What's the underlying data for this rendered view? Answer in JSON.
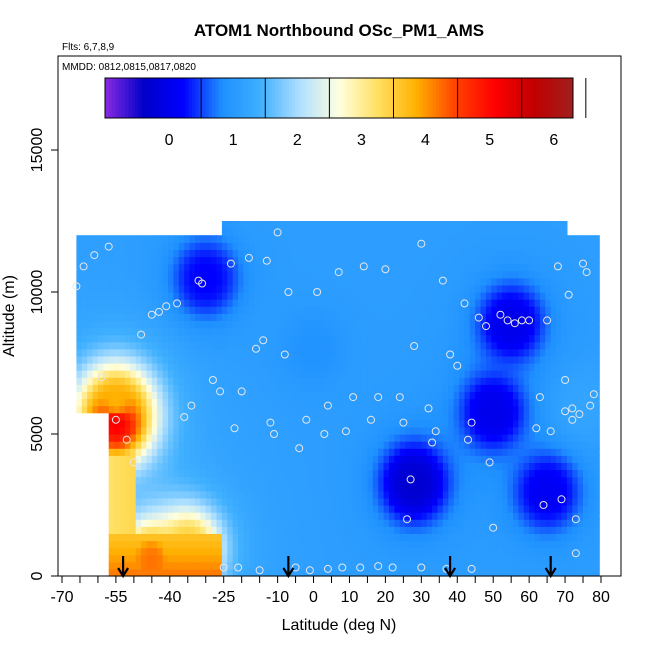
{
  "chart_data": {
    "type": "heatmap",
    "title": "ATOM1 Northbound OSc_PM1_AMS",
    "flights_label": "Flts: 6,7,8,9",
    "dates_label": "MMDD: 0812,0815,0817,0820",
    "xlabel": "Latitude (deg N)",
    "ylabel": "Altitude (m)",
    "xlim": [
      -70,
      82
    ],
    "ylim": [
      0,
      17500
    ],
    "x_ticks": [
      -70,
      -55,
      -40,
      -25,
      -10,
      0,
      10,
      20,
      30,
      40,
      50,
      60,
      70,
      80
    ],
    "y_ticks": [
      0,
      5000,
      10000,
      15000
    ],
    "colorbar": {
      "range": [
        -1,
        6.3
      ],
      "ticks": [
        0,
        1,
        2,
        3,
        4,
        5,
        6
      ],
      "colors": [
        "#8a2be2",
        "#0000c8",
        "#0000ff",
        "#1e90ff",
        "#40b0ff",
        "#b0e0ff",
        "#ffffe0",
        "#ffe060",
        "#ffb000",
        "#ff4000",
        "#ff0000",
        "#c00000",
        "#a02020"
      ]
    },
    "field_samples": [
      {
        "lat": -55,
        "alt": 5500,
        "value": 5.2
      },
      {
        "lat": -55,
        "alt": 6000,
        "value": 3.8
      },
      {
        "lat": -45,
        "alt": 500,
        "value": 4.2
      },
      {
        "lat": -35,
        "alt": 1000,
        "value": 3.5
      },
      {
        "lat": -30,
        "alt": 10500,
        "value": 0.2
      },
      {
        "lat": 0,
        "alt": 8000,
        "value": 0.9
      },
      {
        "lat": 28,
        "alt": 3300,
        "value": -0.3
      },
      {
        "lat": 50,
        "alt": 5800,
        "value": 0.0
      },
      {
        "lat": 55,
        "alt": 8900,
        "value": 0.0
      },
      {
        "lat": 65,
        "alt": 3000,
        "value": 0.1
      },
      {
        "lat": 75,
        "alt": 6000,
        "value": 1.2
      }
    ],
    "sample_points": [
      {
        "lat": -66,
        "alt": 10200
      },
      {
        "lat": -64,
        "alt": 10900
      },
      {
        "lat": -61,
        "alt": 11300
      },
      {
        "lat": -57,
        "alt": 11600
      },
      {
        "lat": -59,
        "alt": 7000
      },
      {
        "lat": -55,
        "alt": 5500
      },
      {
        "lat": -52,
        "alt": 4800
      },
      {
        "lat": -50,
        "alt": 4000
      },
      {
        "lat": -48,
        "alt": 8500
      },
      {
        "lat": -45,
        "alt": 9200
      },
      {
        "lat": -43,
        "alt": 9300
      },
      {
        "lat": -41,
        "alt": 9500
      },
      {
        "lat": -38,
        "alt": 9600
      },
      {
        "lat": -36,
        "alt": 5600
      },
      {
        "lat": -34,
        "alt": 6000
      },
      {
        "lat": -32,
        "alt": 10400
      },
      {
        "lat": -31,
        "alt": 10300
      },
      {
        "lat": -28,
        "alt": 6900
      },
      {
        "lat": -26,
        "alt": 6500
      },
      {
        "lat": -25,
        "alt": 300
      },
      {
        "lat": -23,
        "alt": 11000
      },
      {
        "lat": -22,
        "alt": 5200
      },
      {
        "lat": -20,
        "alt": 6500
      },
      {
        "lat": -18,
        "alt": 11200
      },
      {
        "lat": -16,
        "alt": 8000
      },
      {
        "lat": -14,
        "alt": 8300
      },
      {
        "lat": -13,
        "alt": 11100
      },
      {
        "lat": -12,
        "alt": 5400
      },
      {
        "lat": -11,
        "alt": 5000
      },
      {
        "lat": -10,
        "alt": 12100
      },
      {
        "lat": -8,
        "alt": 7800
      },
      {
        "lat": -7,
        "alt": 10000
      },
      {
        "lat": -4,
        "alt": 4500
      },
      {
        "lat": -2,
        "alt": 5500
      },
      {
        "lat": 1,
        "alt": 10000
      },
      {
        "lat": 3,
        "alt": 5000
      },
      {
        "lat": 4,
        "alt": 6000
      },
      {
        "lat": 7,
        "alt": 10700
      },
      {
        "lat": 9,
        "alt": 5100
      },
      {
        "lat": 11,
        "alt": 6300
      },
      {
        "lat": 14,
        "alt": 10900
      },
      {
        "lat": 16,
        "alt": 5500
      },
      {
        "lat": 18,
        "alt": 6300
      },
      {
        "lat": 20,
        "alt": 10800
      },
      {
        "lat": 24,
        "alt": 6300
      },
      {
        "lat": 25,
        "alt": 5400
      },
      {
        "lat": 26,
        "alt": 2000
      },
      {
        "lat": 27,
        "alt": 3400
      },
      {
        "lat": 28,
        "alt": 8100
      },
      {
        "lat": 30,
        "alt": 11700
      },
      {
        "lat": 32,
        "alt": 5900
      },
      {
        "lat": 33,
        "alt": 4700
      },
      {
        "lat": 34,
        "alt": 5100
      },
      {
        "lat": 36,
        "alt": 10400
      },
      {
        "lat": 38,
        "alt": 7800
      },
      {
        "lat": 40,
        "alt": 7400
      },
      {
        "lat": 42,
        "alt": 9600
      },
      {
        "lat": 43,
        "alt": 4800
      },
      {
        "lat": 44,
        "alt": 5400
      },
      {
        "lat": 46,
        "alt": 9100
      },
      {
        "lat": 48,
        "alt": 8800
      },
      {
        "lat": 49,
        "alt": 4000
      },
      {
        "lat": 50,
        "alt": 1700
      },
      {
        "lat": 52,
        "alt": 9200
      },
      {
        "lat": 54,
        "alt": 9000
      },
      {
        "lat": 56,
        "alt": 8900
      },
      {
        "lat": 58,
        "alt": 9000
      },
      {
        "lat": 60,
        "alt": 9000
      },
      {
        "lat": 62,
        "alt": 5200
      },
      {
        "lat": 63,
        "alt": 6300
      },
      {
        "lat": 64,
        "alt": 2500
      },
      {
        "lat": 65,
        "alt": 9000
      },
      {
        "lat": 66,
        "alt": 5100
      },
      {
        "lat": 68,
        "alt": 10900
      },
      {
        "lat": 69,
        "alt": 2700
      },
      {
        "lat": 70,
        "alt": 6900
      },
      {
        "lat": 70,
        "alt": 5800
      },
      {
        "lat": 71,
        "alt": 9900
      },
      {
        "lat": 72,
        "alt": 5500
      },
      {
        "lat": 72,
        "alt": 5900
      },
      {
        "lat": 73,
        "alt": 2000
      },
      {
        "lat": 74,
        "alt": 5700
      },
      {
        "lat": 75,
        "alt": 11000
      },
      {
        "lat": 76,
        "alt": 10700
      },
      {
        "lat": 77,
        "alt": 6000
      },
      {
        "lat": 78,
        "alt": 6400
      },
      {
        "lat": 73,
        "alt": 800
      },
      {
        "lat": -5,
        "alt": 300
      },
      {
        "lat": -1,
        "alt": 200
      },
      {
        "lat": 4,
        "alt": 250
      },
      {
        "lat": 8,
        "alt": 300
      },
      {
        "lat": 13,
        "alt": 300
      },
      {
        "lat": 18,
        "alt": 350
      },
      {
        "lat": 22,
        "alt": 300
      },
      {
        "lat": 30,
        "alt": 300
      },
      {
        "lat": 37,
        "alt": 250
      },
      {
        "lat": 44,
        "alt": 250
      },
      {
        "lat": -15,
        "alt": 200
      },
      {
        "lat": -21,
        "alt": 300
      }
    ],
    "flight_markers_lat": [
      -53,
      -7,
      38,
      66
    ]
  }
}
